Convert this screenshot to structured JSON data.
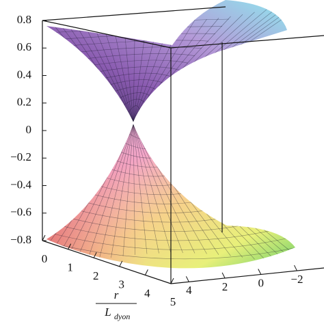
{
  "chart_data": {
    "type": "surface3d",
    "zlim": [
      -0.8,
      0.8
    ],
    "zticks": [
      0.8,
      0.6,
      0.4,
      0.2,
      0,
      {
        "value": -0.2,
        "label": "−0.2"
      },
      {
        "value": -0.4,
        "label": "−0.4"
      },
      {
        "value": -0.6,
        "label": "−0.6"
      },
      {
        "value": -0.8,
        "label": "−0.8"
      }
    ],
    "xlim": [
      0,
      5
    ],
    "xticks": [
      0,
      1,
      2,
      3,
      4,
      5
    ],
    "ylim": [
      5,
      -3.5
    ],
    "yticks": [
      4,
      2,
      0,
      {
        "value": -2,
        "label": "−2"
      }
    ],
    "xlabel": {
      "numerator": "r",
      "denominator": "L",
      "subscript": "dyon"
    }
  }
}
